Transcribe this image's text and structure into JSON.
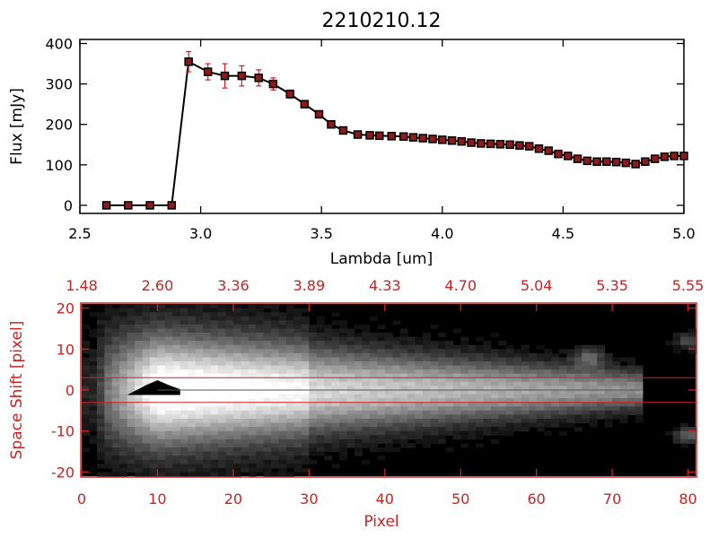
{
  "chart_data": [
    {
      "type": "line",
      "title": "2210210.12",
      "xlabel": "Lambda [um]",
      "ylabel": "Flux [mJy]",
      "xlim": [
        2.5,
        5.0
      ],
      "ylim": [
        -20,
        410
      ],
      "x_ticks": [
        "2.5",
        "3.0",
        "3.5",
        "4.0",
        "4.5",
        "5.0"
      ],
      "y_ticks": [
        "0",
        "100",
        "200",
        "300",
        "400"
      ],
      "colors": {
        "line": "#000000",
        "marker": "#8b1a1a",
        "errorbar": "#cc2222"
      },
      "series": [
        {
          "x": [
            2.61,
            2.7,
            2.79,
            2.88,
            2.95,
            3.03,
            3.1,
            3.17,
            3.24,
            3.3,
            3.37,
            3.43,
            3.49,
            3.54,
            3.59,
            3.65,
            3.7,
            3.74,
            3.79,
            3.84,
            3.88,
            3.92,
            3.96,
            4.0,
            4.04,
            4.08,
            4.12,
            4.16,
            4.2,
            4.24,
            4.28,
            4.32,
            4.36,
            4.4,
            4.44,
            4.48,
            4.52,
            4.56,
            4.6,
            4.64,
            4.68,
            4.72,
            4.76,
            4.8,
            4.84,
            4.88,
            4.92,
            4.96,
            5.0
          ],
          "y": [
            0,
            0,
            0,
            0,
            355,
            330,
            320,
            320,
            315,
            300,
            275,
            250,
            225,
            200,
            185,
            175,
            173,
            172,
            171,
            170,
            168,
            166,
            164,
            162,
            160,
            158,
            155,
            153,
            152,
            151,
            150,
            148,
            146,
            140,
            135,
            127,
            122,
            115,
            110,
            108,
            108,
            107,
            105,
            102,
            108,
            115,
            120,
            122,
            122
          ],
          "errors": [
            0,
            0,
            0,
            0,
            25,
            20,
            30,
            25,
            20,
            15,
            10,
            8,
            6,
            5,
            5,
            4,
            4,
            4,
            4,
            4,
            4,
            4,
            4,
            4,
            4,
            4,
            4,
            4,
            4,
            4,
            4,
            4,
            4,
            4,
            4,
            4,
            4,
            4,
            4,
            4,
            4,
            4,
            4,
            4,
            4,
            4,
            4,
            4,
            4
          ]
        }
      ]
    },
    {
      "type": "heatmap",
      "xlabel": "Pixel",
      "ylabel": "Space Shift [pixel]",
      "xlim": [
        0,
        81
      ],
      "ylim": [
        -21,
        21
      ],
      "x_ticks": [
        "0",
        "10",
        "20",
        "30",
        "40",
        "50",
        "60",
        "70",
        "80"
      ],
      "y_ticks": [
        "20",
        "10",
        "0",
        "-10",
        "-20"
      ],
      "top_ticks": [
        "1.48",
        "2.60",
        "3.36",
        "3.89",
        "4.33",
        "4.70",
        "5.04",
        "5.35",
        "5.55"
      ],
      "aperture": [
        -3,
        3
      ],
      "colormap": "grayscale",
      "colors": {
        "axis": "#cc2222",
        "aperture_line": "#cc2222"
      },
      "trace_center": 0,
      "peak_pixel": 10
    }
  ]
}
